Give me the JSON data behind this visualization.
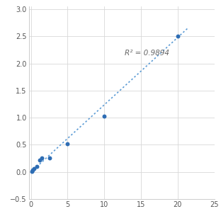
{
  "x_data": [
    0.1,
    0.2,
    0.4,
    0.8,
    1.2,
    1.5,
    2.5,
    5.0,
    10.0,
    20.0
  ],
  "y_data": [
    0.01,
    0.03,
    0.06,
    0.1,
    0.22,
    0.25,
    0.25,
    0.52,
    1.03,
    2.5
  ],
  "trendline_x": [
    0.0,
    21.5
  ],
  "trendline_slope": 0.1243,
  "trendline_intercept": -0.005,
  "r2_text": "R² = 0.9894",
  "r2_x": 12.8,
  "r2_y": 2.12,
  "marker_color": "#2e6db4",
  "marker_size": 18,
  "line_color": "#5b9bd5",
  "line_width": 1.2,
  "xlim": [
    -0.3,
    25
  ],
  "ylim": [
    -0.5,
    3.05
  ],
  "xticks": [
    0,
    5,
    10,
    15,
    20,
    25
  ],
  "yticks": [
    -0.5,
    0,
    0.5,
    1,
    1.5,
    2,
    2.5,
    3
  ],
  "grid_color": "#d8d8d8",
  "background_color": "#ffffff",
  "tick_label_fontsize": 7,
  "annotation_fontsize": 7.5,
  "annotation_color": "#666666"
}
